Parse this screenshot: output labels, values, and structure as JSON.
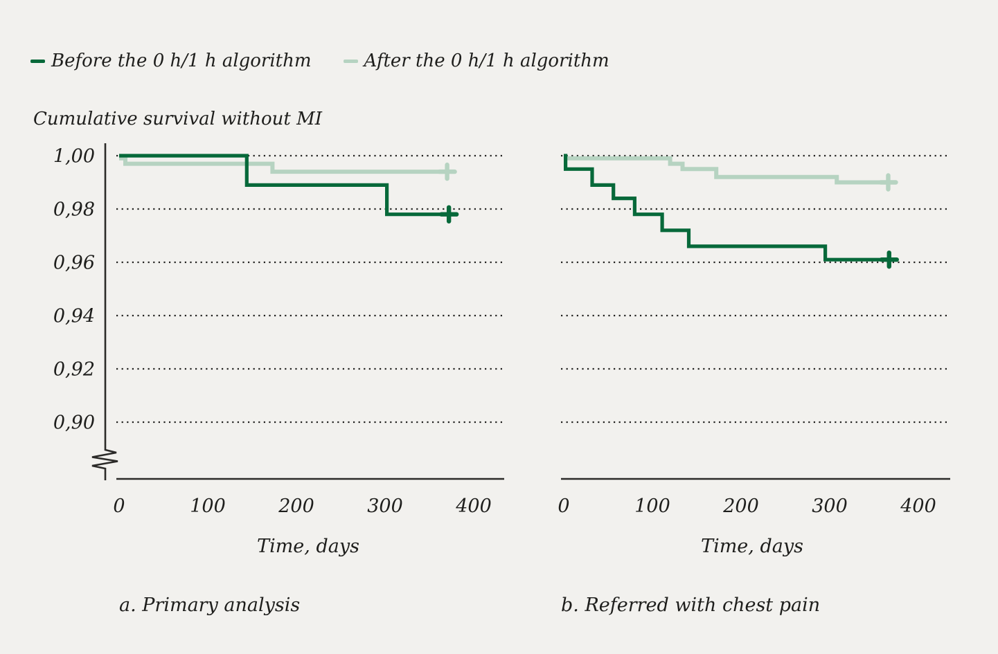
{
  "legend": {
    "items": [
      {
        "id": "before",
        "label": "Before the 0 h/1 h algorithm",
        "color": "#07693a"
      },
      {
        "id": "after",
        "label": "After the 0 h/1 h algorithm",
        "color": "#b6d3c1"
      }
    ]
  },
  "y_axis_title": "Cumulative survival without MI",
  "colors": {
    "background": "#f2f1ee",
    "axis": "#2b2a28",
    "gridline": "#21211f",
    "before_line": "#07693a",
    "after_line": "#b6d3c1"
  },
  "chart_data": [
    {
      "type": "line",
      "subtype": "kaplan-meier-step",
      "caption": "a. Primary analysis",
      "xlabel": "Time, days",
      "ylabel": "Cumulative survival without MI",
      "x_ticks": [
        0,
        100,
        200,
        300,
        400
      ],
      "y_grid_values": [
        1.0,
        0.98,
        0.96,
        0.94,
        0.92,
        0.9
      ],
      "y_tick_labels": [
        "1,00",
        "0,98",
        "0,96",
        "0,94",
        "0,92",
        "0,90"
      ],
      "ylim": [
        0.9,
        1.0
      ],
      "xlim": [
        0,
        435
      ],
      "axis_break": true,
      "grid": "dotted-horizontal",
      "legend_position": "top-left-above",
      "series": [
        {
          "id": "before",
          "name": "Before the 0 h/1 h algorithm",
          "color": "#07693a",
          "points": [
            [
              0,
              1.0
            ],
            [
              144,
              1.0
            ],
            [
              144,
              0.989
            ],
            [
              302,
              0.989
            ],
            [
              302,
              0.978
            ],
            [
              372,
              0.978
            ]
          ],
          "censor": [
            372,
            0.978
          ]
        },
        {
          "id": "after",
          "name": "After the 0 h/1 h algorithm",
          "color": "#b6d3c1",
          "points": [
            [
              0,
              0.999
            ],
            [
              7,
              0.999
            ],
            [
              7,
              0.997
            ],
            [
              173,
              0.997
            ],
            [
              173,
              0.994
            ],
            [
              370,
              0.994
            ]
          ],
          "censor": [
            370,
            0.994
          ]
        }
      ]
    },
    {
      "type": "line",
      "subtype": "kaplan-meier-step",
      "caption": "b. Referred with chest pain",
      "xlabel": "Time, days",
      "x_ticks": [
        0,
        100,
        200,
        300,
        400
      ],
      "y_grid_values": [
        1.0,
        0.98,
        0.96,
        0.94,
        0.92,
        0.9
      ],
      "y_tick_labels": [],
      "ylim": [
        0.9,
        1.0
      ],
      "xlim": [
        0,
        435
      ],
      "axis_break": false,
      "grid": "dotted-horizontal",
      "series": [
        {
          "id": "before",
          "name": "Before the 0 h/1 h algorithm",
          "color": "#07693a",
          "points": [
            [
              0,
              1.0
            ],
            [
              2,
              1.0
            ],
            [
              2,
              0.995
            ],
            [
              32,
              0.995
            ],
            [
              32,
              0.989
            ],
            [
              56,
              0.989
            ],
            [
              56,
              0.984
            ],
            [
              80,
              0.984
            ],
            [
              80,
              0.978
            ],
            [
              111,
              0.978
            ],
            [
              111,
              0.972
            ],
            [
              141,
              0.972
            ],
            [
              141,
              0.966
            ],
            [
              295,
              0.966
            ],
            [
              295,
              0.961
            ],
            [
              367,
              0.961
            ]
          ],
          "censor": [
            367,
            0.961
          ]
        },
        {
          "id": "after",
          "name": "After the 0 h/1 h algorithm",
          "color": "#b6d3c1",
          "points": [
            [
              0,
              0.999
            ],
            [
              120,
              0.999
            ],
            [
              120,
              0.997
            ],
            [
              134,
              0.997
            ],
            [
              134,
              0.995
            ],
            [
              172,
              0.995
            ],
            [
              172,
              0.992
            ],
            [
              308,
              0.992
            ],
            [
              308,
              0.99
            ],
            [
              366,
              0.99
            ]
          ],
          "censor": [
            366,
            0.99
          ]
        }
      ]
    }
  ]
}
